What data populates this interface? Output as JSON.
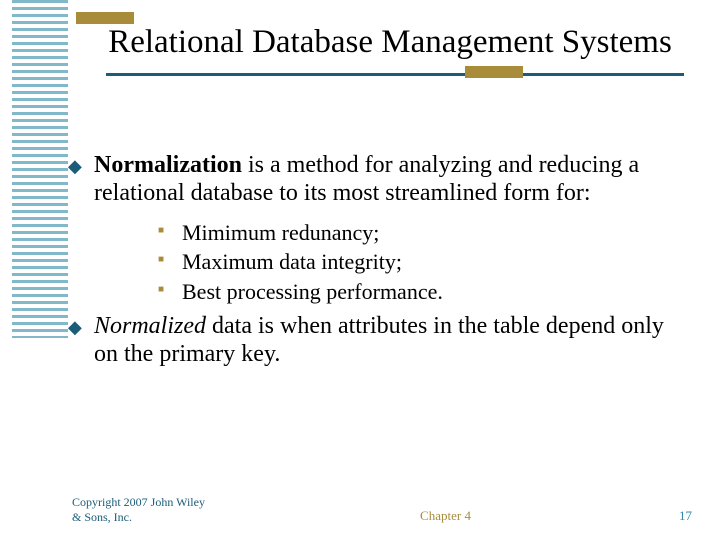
{
  "theme": {
    "stripe_color": "#2d8aa8",
    "accent_color": "#a98c3a",
    "underline_color": "#1b5c78",
    "diamond_bullet_color": "#1b5c78",
    "square_bullet_color": "#a98c3a",
    "background": "#ffffff",
    "text_color": "#000000"
  },
  "title": "Relational Database Management Systems",
  "bullets": {
    "main1_bold": "Normalization",
    "main1_rest": " is a method for analyzing and reducing a relational database to its most streamlined form for:",
    "subs": [
      "Mimimum redunancy;",
      "Maximum data integrity;",
      "Best processing performance."
    ],
    "main2_italic": "Normalized",
    "main2_rest": " data is when attributes in the table depend only on the primary key."
  },
  "footer": {
    "copyright": "Copyright 2007 John Wiley & Sons, Inc.",
    "chapter": "Chapter 4",
    "page": "17"
  }
}
